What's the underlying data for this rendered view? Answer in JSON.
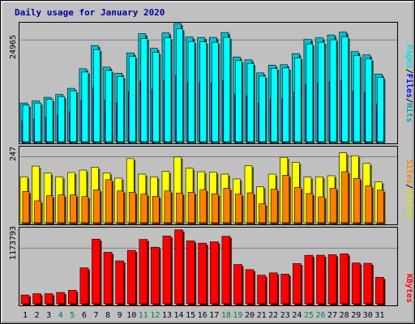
{
  "chart_data": [
    {
      "type": "bar",
      "title": "Daily usage for January 2020",
      "categories": [
        "1",
        "2",
        "3",
        "4",
        "5",
        "6",
        "7",
        "8",
        "9",
        "10",
        "11",
        "12",
        "13",
        "14",
        "15",
        "16",
        "17",
        "18",
        "19",
        "20",
        "21",
        "22",
        "23",
        "24",
        "25",
        "26",
        "27",
        "28",
        "29",
        "30",
        "31"
      ],
      "weekend_days": [
        "4",
        "5",
        "11",
        "12",
        "18",
        "19",
        "25",
        "26"
      ],
      "ylim": [
        0,
        29000
      ],
      "y_tick_label": "24965",
      "y_tick_value": 24965,
      "legend": [
        {
          "name": "Hits",
          "color": "#00c0d0"
        },
        {
          "name": "Files",
          "color": "#0000ff"
        },
        {
          "name": "Pages",
          "color": "#00ffff"
        }
      ],
      "separator": "/",
      "series": [
        {
          "name": "Hits",
          "color": "#00c0d0",
          "values": [
            9500,
            10000,
            10900,
            11600,
            13100,
            17900,
            23600,
            18300,
            16800,
            21800,
            26500,
            22900,
            26700,
            29000,
            25700,
            25600,
            25600,
            26800,
            20800,
            20100,
            16900,
            18800,
            18900,
            21600,
            25100,
            25500,
            26200,
            26900,
            22100,
            21300,
            16600
          ]
        },
        {
          "name": "Files",
          "color": "#0000ff",
          "values": [
            5200,
            5600,
            6100,
            6500,
            7400,
            10100,
            13300,
            10300,
            9500,
            12300,
            14900,
            12900,
            15000,
            16300,
            14500,
            14400,
            14400,
            15100,
            11700,
            11300,
            9500,
            10600,
            10600,
            12200,
            14100,
            14400,
            14700,
            15100,
            12400,
            12000,
            9300
          ]
        },
        {
          "name": "Pages",
          "color": "#00ffff",
          "values": [
            9000,
            9500,
            10400,
            11100,
            12500,
            17100,
            22600,
            17500,
            16000,
            20900,
            25300,
            21900,
            25500,
            27700,
            24600,
            24500,
            24400,
            25600,
            19900,
            19200,
            16100,
            18000,
            18100,
            20600,
            24000,
            24400,
            25000,
            25700,
            21100,
            20300,
            15800
          ]
        }
      ]
    },
    {
      "type": "bar",
      "categories": [
        "1",
        "2",
        "3",
        "4",
        "5",
        "6",
        "7",
        "8",
        "9",
        "10",
        "11",
        "12",
        "13",
        "14",
        "15",
        "16",
        "17",
        "18",
        "19",
        "20",
        "21",
        "22",
        "23",
        "24",
        "25",
        "26",
        "27",
        "28",
        "29",
        "30",
        "31"
      ],
      "ylim": [
        0,
        282
      ],
      "y_tick_label": "247",
      "y_tick_value": 247,
      "legend": [
        {
          "name": "Visits",
          "color": "#ffff00"
        },
        {
          "name": "Sites",
          "color": "#ff8000"
        }
      ],
      "separator": "/",
      "series": [
        {
          "name": "Visits",
          "color": "#ffff00",
          "values": [
            172,
            212,
            186,
            172,
            188,
            197,
            208,
            187,
            167,
            240,
            182,
            172,
            192,
            246,
            204,
            191,
            190,
            182,
            164,
            214,
            135,
            182,
            245,
            226,
            171,
            172,
            176,
            262,
            251,
            222,
            153
          ]
        },
        {
          "name": "Sites",
          "color": "#ff8000",
          "values": [
            117,
            82,
            101,
            104,
            104,
            98,
            123,
            161,
            119,
            114,
            107,
            99,
            119,
            111,
            114,
            124,
            108,
            129,
            107,
            112,
            71,
            126,
            178,
            132,
            109,
            97,
            129,
            191,
            166,
            138,
            122
          ]
        }
      ]
    },
    {
      "type": "bar",
      "categories": [
        "1",
        "2",
        "3",
        "4",
        "5",
        "6",
        "7",
        "8",
        "9",
        "10",
        "11",
        "12",
        "13",
        "14",
        "15",
        "16",
        "17",
        "18",
        "19",
        "20",
        "21",
        "22",
        "23",
        "24",
        "25",
        "26",
        "27",
        "28",
        "29",
        "30",
        "31"
      ],
      "ylim": [
        0,
        1590000
      ],
      "y_tick_label": "1173793",
      "y_tick_value": 1173793,
      "legend": [
        {
          "name": "KBytes",
          "color": "#ff0000"
        }
      ],
      "series": [
        {
          "name": "KBytes",
          "color": "#ff0000",
          "values": [
            185000,
            212000,
            212000,
            239000,
            284000,
            758000,
            1364000,
            1086000,
            905000,
            1127000,
            1358000,
            1193000,
            1430000,
            1559000,
            1328000,
            1279000,
            1308000,
            1425000,
            829000,
            721000,
            603000,
            652000,
            626000,
            848000,
            1023000,
            1025000,
            1035000,
            1055000,
            862000,
            854000,
            558000
          ]
        }
      ]
    }
  ]
}
